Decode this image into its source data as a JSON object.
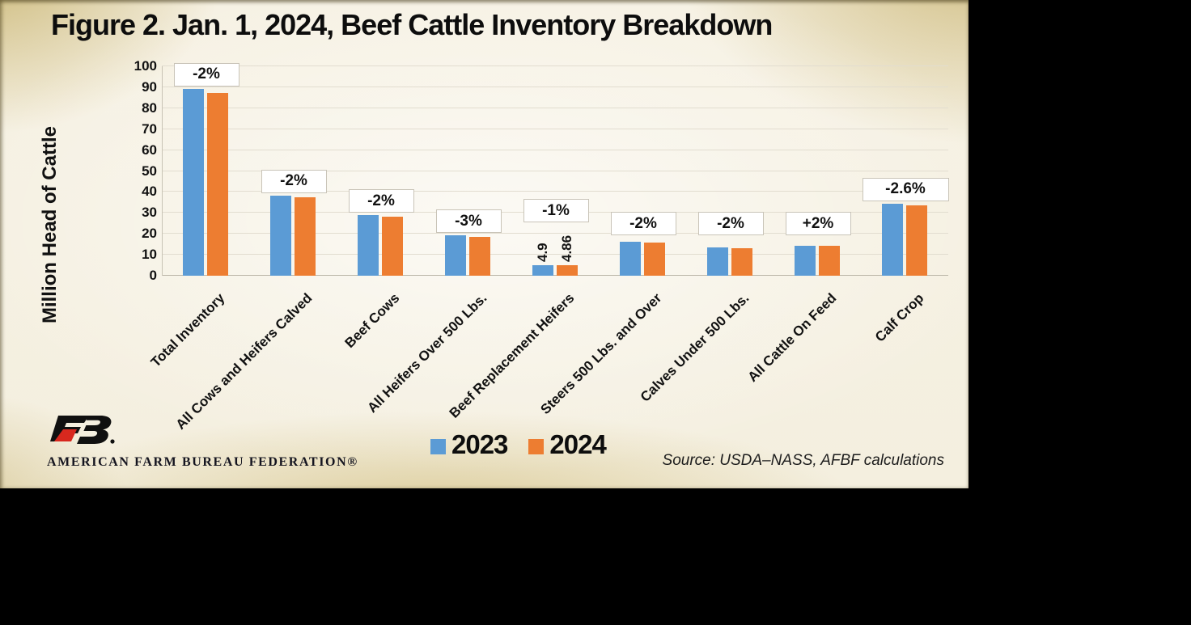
{
  "branding": {
    "org_name": "AMERICAN FARM BUREAU FEDERATION®"
  },
  "source_note": "Source: USDA–NASS, AFBF calculations",
  "chart_data": {
    "type": "bar",
    "title": "Figure 2. Jan. 1, 2024, Beef Cattle Inventory Breakdown",
    "xlabel": "",
    "ylabel": "Million Head of Cattle",
    "ylim": [
      0,
      100
    ],
    "ytick_step": 10,
    "grid": true,
    "legend_position": "bottom",
    "categories": [
      "Total Inventory",
      "All Cows and Heifers Calved",
      "Beef Cows",
      "All Heifers Over 500 Lbs.",
      "Beef Replacement Heifers",
      "Steers 500 Lbs. and Over",
      "Calves Under 500 Lbs.",
      "All Cattle On Feed",
      "Calf Crop"
    ],
    "series": [
      {
        "name": "2023",
        "color": "#5B9BD5",
        "values": [
          89.3,
          38.3,
          28.9,
          19.2,
          4.9,
          16.1,
          13.6,
          14.2,
          34.5
        ]
      },
      {
        "name": "2024",
        "color": "#ED7D31",
        "values": [
          87.2,
          37.6,
          28.2,
          18.5,
          4.86,
          15.8,
          13.3,
          14.4,
          33.6
        ]
      }
    ],
    "change_labels": [
      "-2%",
      "-2%",
      "-2%",
      "-3%",
      "-1%",
      "-2%",
      "-2%",
      "+2%",
      "-2.6%"
    ],
    "colors": {
      "label_text": "#141414",
      "percent_box_bg": "#ffffff"
    }
  }
}
